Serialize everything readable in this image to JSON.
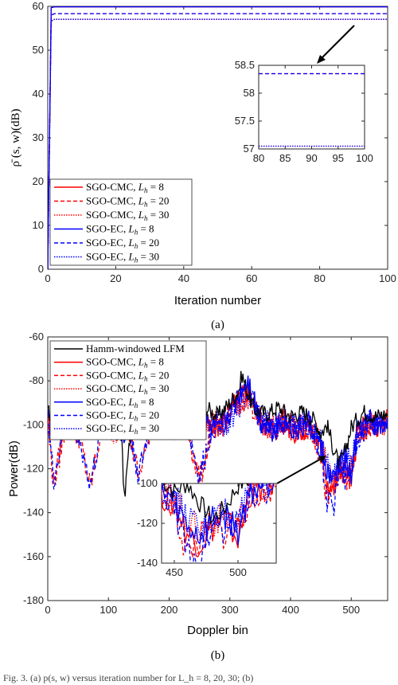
{
  "caption": "Fig. 3. (a) p(s, w) versus iteration number for L_h = 8, 20, 30; (b)",
  "chart_data": [
    {
      "type": "line",
      "panel_label": "(a)",
      "xlabel": "Iteration number",
      "ylabel": "ρ̄ (s, w)(dB)",
      "xlim": [
        0,
        100
      ],
      "ylim": [
        0,
        60
      ],
      "xticks": [
        0,
        20,
        40,
        60,
        80,
        100
      ],
      "yticks": [
        0,
        10,
        20,
        30,
        40,
        50,
        60
      ],
      "legend_placement": "lower-left",
      "series": [
        {
          "name": "SGO-CMC, L_h = 8",
          "color": "#ff0000",
          "style": "solid",
          "x": [
            0,
            1,
            2,
            100
          ],
          "y": [
            0,
            59.7,
            59.9,
            59.9
          ]
        },
        {
          "name": "SGO-CMC, L_h = 20",
          "color": "#ff0000",
          "style": "dashed",
          "x": [
            0,
            1,
            2,
            100
          ],
          "y": [
            0,
            58.0,
            58.35,
            58.35
          ]
        },
        {
          "name": "SGO-CMC, L_h = 30",
          "color": "#ff0000",
          "style": "dotted",
          "x": [
            0,
            1,
            2,
            100
          ],
          "y": [
            0,
            56.6,
            57.05,
            57.05
          ]
        },
        {
          "name": "SGO-EC, L_h = 8",
          "color": "#0000ff",
          "style": "solid",
          "x": [
            0,
            1,
            2,
            100
          ],
          "y": [
            0,
            59.7,
            59.9,
            59.9
          ]
        },
        {
          "name": "SGO-EC, L_h = 20",
          "color": "#0000ff",
          "style": "dashed",
          "x": [
            0,
            1,
            2,
            100
          ],
          "y": [
            0,
            58.0,
            58.35,
            58.35
          ]
        },
        {
          "name": "SGO-EC, L_h = 30",
          "color": "#0000ff",
          "style": "dotted",
          "x": [
            0,
            1,
            2,
            100
          ],
          "y": [
            0,
            56.6,
            57.05,
            57.05
          ]
        }
      ],
      "inset": {
        "xlim": [
          80,
          100
        ],
        "ylim": [
          57,
          58.5
        ],
        "xticks": [
          80,
          85,
          90,
          95,
          100
        ],
        "yticks": [
          57,
          57.5,
          58,
          58.5
        ],
        "lines": [
          {
            "color": "#ff0000",
            "style": "dashed",
            "y": 58.35
          },
          {
            "color": "#0000ff",
            "style": "dashed",
            "y": 58.35
          },
          {
            "color": "#ff0000",
            "style": "dotted",
            "y": 57.05
          },
          {
            "color": "#0000ff",
            "style": "dotted",
            "y": 57.05
          }
        ]
      }
    },
    {
      "type": "line",
      "panel_label": "(b)",
      "xlabel": "Doppler bin",
      "ylabel": "Power(dB)",
      "xlim": [
        0,
        560
      ],
      "ylim": [
        -180,
        -60
      ],
      "xticks": [
        0,
        100,
        200,
        300,
        400,
        500
      ],
      "yticks": [
        -180,
        -160,
        -140,
        -120,
        -100,
        -80,
        -60
      ],
      "legend_placement": "top-left",
      "series": [
        {
          "name": "Hamm-windowed LFM",
          "color": "#000000",
          "style": "solid",
          "x": [
            0,
            20,
            40,
            60,
            80,
            100,
            120,
            126,
            140,
            160,
            180,
            200,
            220,
            240,
            260,
            280,
            300,
            315,
            320,
            330,
            340,
            360,
            380,
            400,
            420,
            440,
            450,
            460,
            470,
            480,
            490,
            500,
            520,
            540,
            560
          ],
          "y": [
            -95,
            -93,
            -96,
            -92,
            -97,
            -94,
            -95,
            -134,
            -93,
            -96,
            -92,
            -95,
            -97,
            -94,
            -92,
            -96,
            -90,
            -84,
            -77,
            -86,
            -93,
            -95,
            -92,
            -96,
            -94,
            -98,
            -104,
            -100,
            -110,
            -118,
            -112,
            -101,
            -94,
            -96,
            -95
          ]
        },
        {
          "name": "SGO-CMC, L_h = 8",
          "color": "#ff0000",
          "style": "solid",
          "x": [
            0,
            10,
            30,
            50,
            70,
            90,
            110,
            130,
            150,
            170,
            190,
            210,
            230,
            250,
            270,
            290,
            310,
            330,
            350,
            370,
            390,
            410,
            430,
            450,
            460,
            470,
            480,
            490,
            500,
            510,
            530,
            550,
            560
          ],
          "y": [
            -98,
            -102,
            -97,
            -104,
            -99,
            -101,
            -96,
            -103,
            -98,
            -104,
            -97,
            -102,
            -100,
            -96,
            -103,
            -98,
            -90,
            -84,
            -97,
            -103,
            -99,
            -104,
            -100,
            -110,
            -125,
            -130,
            -122,
            -118,
            -128,
            -104,
            -99,
            -102,
            -98
          ]
        },
        {
          "name": "SGO-CMC, L_h = 20",
          "color": "#ff0000",
          "style": "dashed",
          "x": [
            0,
            10,
            30,
            50,
            70,
            90,
            110,
            130,
            150,
            170,
            190,
            210,
            230,
            250,
            270,
            290,
            310,
            330,
            350,
            370,
            390,
            410,
            430,
            450,
            460,
            470,
            480,
            490,
            500,
            510,
            530,
            550,
            560
          ],
          "y": [
            -100,
            -127,
            -99,
            -103,
            -129,
            -100,
            -104,
            -98,
            -124,
            -100,
            -97,
            -103,
            -101,
            -126,
            -102,
            -99,
            -92,
            -86,
            -100,
            -102,
            -97,
            -103,
            -101,
            -113,
            -136,
            -128,
            -120,
            -126,
            -122,
            -106,
            -101,
            -100,
            -99
          ]
        },
        {
          "name": "SGO-CMC, L_h = 30",
          "color": "#ff0000",
          "style": "dotted",
          "x": [
            0,
            10,
            30,
            50,
            70,
            90,
            110,
            130,
            150,
            170,
            190,
            210,
            230,
            250,
            270,
            290,
            310,
            330,
            350,
            370,
            390,
            410,
            430,
            450,
            460,
            470,
            480,
            490,
            500,
            510,
            530,
            550,
            560
          ],
          "y": [
            -99,
            -101,
            -98,
            -102,
            -100,
            -99,
            -103,
            -97,
            -101,
            -99,
            -102,
            -98,
            -104,
            -100,
            -97,
            -101,
            -93,
            -87,
            -99,
            -101,
            -98,
            -102,
            -100,
            -108,
            -118,
            -124,
            -120,
            -116,
            -120,
            -105,
            -100,
            -101,
            -98
          ]
        },
        {
          "name": "SGO-EC, L_h = 8",
          "color": "#0000ff",
          "style": "solid",
          "x": [
            0,
            10,
            30,
            50,
            70,
            90,
            110,
            130,
            150,
            170,
            190,
            210,
            230,
            250,
            270,
            290,
            310,
            330,
            350,
            370,
            390,
            410,
            430,
            450,
            460,
            470,
            480,
            490,
            500,
            510,
            530,
            550,
            560
          ],
          "y": [
            -97,
            -101,
            -98,
            -103,
            -97,
            -102,
            -99,
            -104,
            -97,
            -101,
            -98,
            -103,
            -99,
            -97,
            -102,
            -99,
            -89,
            -79,
            -98,
            -102,
            -98,
            -103,
            -99,
            -109,
            -122,
            -126,
            -118,
            -116,
            -124,
            -103,
            -98,
            -101,
            -97
          ]
        },
        {
          "name": "SGO-EC, L_h = 20",
          "color": "#0000ff",
          "style": "dashed",
          "x": [
            0,
            10,
            30,
            50,
            70,
            90,
            110,
            130,
            150,
            170,
            190,
            210,
            230,
            250,
            270,
            290,
            310,
            330,
            350,
            370,
            390,
            410,
            430,
            450,
            460,
            470,
            480,
            490,
            500,
            510,
            530,
            550,
            560
          ],
          "y": [
            -99,
            -125,
            -98,
            -102,
            -128,
            -99,
            -103,
            -97,
            -123,
            -99,
            -98,
            -102,
            -100,
            -125,
            -101,
            -98,
            -91,
            -83,
            -99,
            -101,
            -98,
            -102,
            -100,
            -112,
            -134,
            -138,
            -121,
            -124,
            -120,
            -105,
            -100,
            -99,
            -98
          ]
        },
        {
          "name": "SGO-EC, L_h = 30",
          "color": "#0000ff",
          "style": "dotted",
          "x": [
            0,
            10,
            30,
            50,
            70,
            90,
            110,
            130,
            150,
            170,
            190,
            210,
            230,
            250,
            270,
            290,
            310,
            330,
            350,
            370,
            390,
            410,
            430,
            450,
            460,
            470,
            480,
            490,
            500,
            510,
            530,
            550,
            560
          ],
          "y": [
            -98,
            -100,
            -99,
            -101,
            -99,
            -100,
            -102,
            -98,
            -100,
            -98,
            -101,
            -99,
            -103,
            -99,
            -98,
            -100,
            -94,
            -85,
            -98,
            -100,
            -99,
            -101,
            -99,
            -107,
            -117,
            -122,
            -118,
            -114,
            -118,
            -104,
            -99,
            -100,
            -97
          ]
        }
      ],
      "inset": {
        "xlim": [
          440,
          530
        ],
        "ylim": [
          -140,
          -100
        ],
        "xticks": [
          450,
          500
        ],
        "yticks": [
          -140,
          -120,
          -100
        ]
      }
    }
  ]
}
